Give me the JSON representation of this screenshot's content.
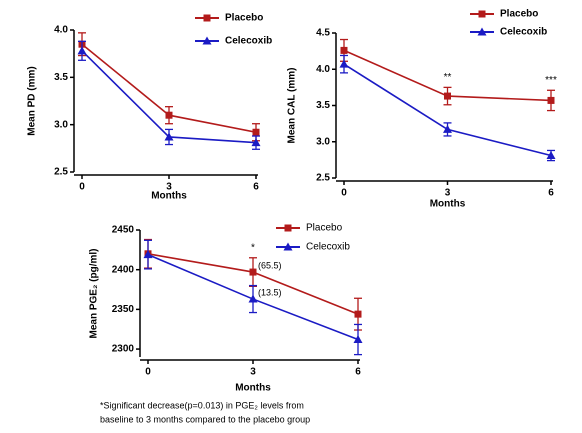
{
  "chart_data": [
    {
      "type": "line",
      "x_label": "Months",
      "y_label": "Mean PD (mm)",
      "x": [
        0,
        3,
        6
      ],
      "xlim": [
        0,
        6
      ],
      "xticks": [
        0,
        3,
        6
      ],
      "ylim": [
        2.5,
        4.0
      ],
      "yticks": [
        2.5,
        {
          "value": 3.0,
          "label": "3.0"
        },
        3.5,
        {
          "value": 4.0,
          "label": "4.0"
        }
      ],
      "series": [
        {
          "name": "Placebo",
          "color": "#b31b1b",
          "marker": "square",
          "values": [
            3.85,
            3.1,
            2.92
          ],
          "errors": [
            0.12,
            0.09,
            0.09
          ]
        },
        {
          "name": "Celecoxib",
          "color": "#1b1bc4",
          "marker": "triangle",
          "values": [
            3.78,
            2.87,
            2.81
          ],
          "errors": [
            0.1,
            0.08,
            0.07
          ]
        }
      ]
    },
    {
      "type": "line",
      "x_label": "Months",
      "y_label": "Mean CAL (mm)",
      "x": [
        0,
        3,
        6
      ],
      "xlim": [
        0,
        6
      ],
      "xticks": [
        0,
        3,
        6
      ],
      "ylim": [
        2.5,
        4.5
      ],
      "yticks": [
        2.5,
        {
          "value": 3.0,
          "label": "3.0"
        },
        3.5,
        {
          "value": 4.0,
          "label": "4.0"
        },
        4.5
      ],
      "series": [
        {
          "name": "Placebo",
          "color": "#b31b1b",
          "marker": "square",
          "values": [
            4.26,
            3.63,
            3.57
          ],
          "errors": [
            0.15,
            0.12,
            0.14
          ]
        },
        {
          "name": "Celecoxib",
          "color": "#1b1bc4",
          "marker": "triangle",
          "values": [
            4.07,
            3.17,
            2.81
          ],
          "errors": [
            0.12,
            0.09,
            0.07
          ]
        }
      ],
      "annotations": [
        {
          "text": "**",
          "x": 3
        },
        {
          "text": "***",
          "x": 6
        }
      ]
    },
    {
      "type": "line",
      "x_label": "Months",
      "y_label": "Mean PGE₂ (pg/ml)",
      "x": [
        0,
        3,
        6
      ],
      "xlim": [
        0,
        6
      ],
      "xticks": [
        0,
        3,
        6
      ],
      "ylim": [
        2290,
        2450
      ],
      "yticks": [
        2300,
        2350,
        2400,
        2450
      ],
      "series": [
        {
          "name": "Placebo",
          "color": "#b31b1b",
          "marker": "square",
          "values": [
            2420,
            2397,
            2344
          ],
          "errors": [
            18,
            18,
            20
          ]
        },
        {
          "name": "Celecoxib",
          "color": "#1b1bc4",
          "marker": "triangle",
          "values": [
            2419,
            2363,
            2312
          ],
          "errors": [
            18,
            17,
            19
          ]
        }
      ],
      "annotations": [
        {
          "text": "*",
          "x": 3
        },
        {
          "text": "(65.5)",
          "x": 3,
          "series": 0
        },
        {
          "text": "(13.5)",
          "x": 3,
          "series": 1
        }
      ],
      "footnote": [
        "*Significant decrease(p=0.013) in PGE₂ levels from",
        "baseline to 3 months compared to the placebo group"
      ]
    }
  ]
}
